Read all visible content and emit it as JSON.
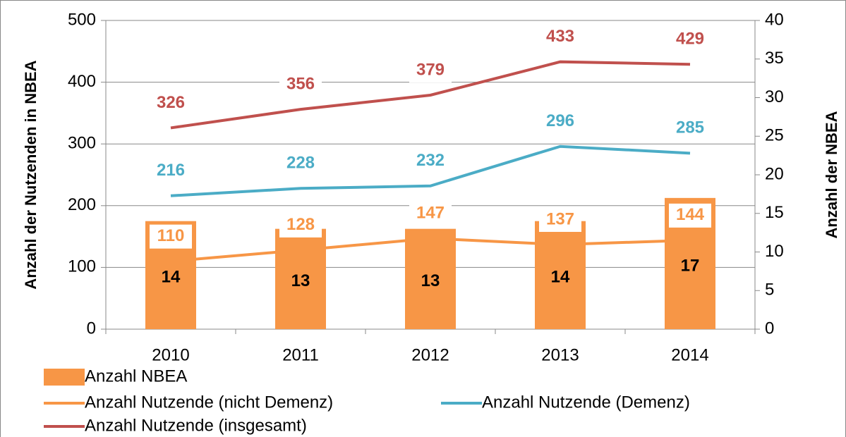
{
  "chart_data": {
    "type": "bar",
    "categories": [
      "2010",
      "2011",
      "2012",
      "2013",
      "2014"
    ],
    "ylabel": "Anzahl der Nutzenden in NBEA",
    "y2label": "Anzahl der NBEA",
    "ylim": [
      0,
      500
    ],
    "yticks": [
      0,
      100,
      200,
      300,
      400,
      500
    ],
    "y2lim": [
      0,
      40
    ],
    "y2ticks": [
      0,
      5,
      10,
      15,
      20,
      25,
      30,
      35,
      40
    ],
    "grid": true,
    "series": [
      {
        "name": "Anzahl NBEA",
        "type": "bar",
        "axis": "y2",
        "color": "#f79646",
        "values": [
          14,
          13,
          13,
          14,
          17
        ]
      },
      {
        "name": "Anzahl Nutzende (nicht Demenz)",
        "type": "line",
        "color": "#f79646",
        "values": [
          110,
          128,
          147,
          137,
          144
        ]
      },
      {
        "name": "Anzahl Nutzende (Demenz)",
        "type": "line",
        "color": "#4bacc6",
        "values": [
          216,
          228,
          232,
          296,
          285
        ]
      },
      {
        "name": "Anzahl Nutzende (insgesamt)",
        "type": "line",
        "color": "#c0504d",
        "values": [
          326,
          356,
          379,
          433,
          429
        ]
      }
    ]
  }
}
